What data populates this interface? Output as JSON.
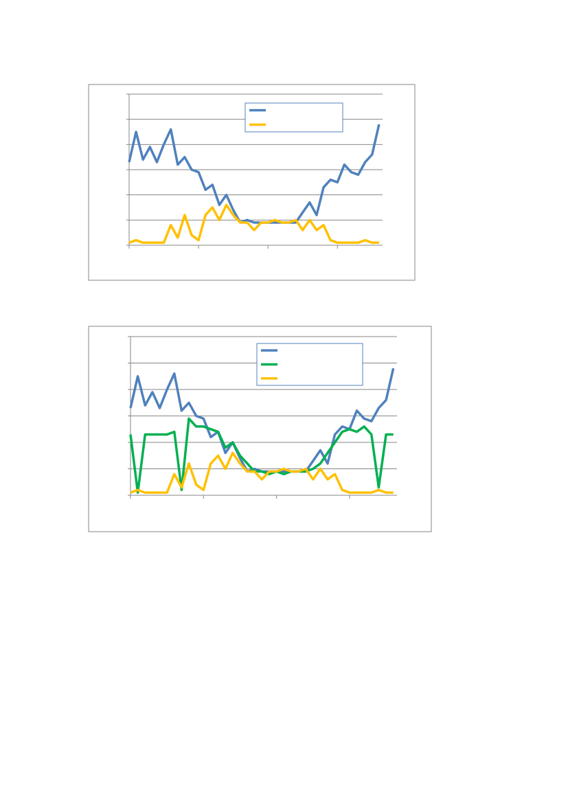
{
  "chart_data": [
    {
      "type": "line",
      "x": [
        0,
        10,
        20,
        30,
        40,
        50,
        60,
        70,
        80,
        90,
        100,
        110,
        120,
        130,
        140,
        150,
        160,
        170,
        180,
        190,
        200,
        210,
        220,
        230,
        240,
        250,
        260,
        270,
        280,
        290,
        300,
        310,
        320,
        330,
        340,
        350,
        360
      ],
      "xlim": [
        0,
        365
      ],
      "xticks": [
        0,
        100,
        200,
        300
      ],
      "ylim": [
        0,
        6
      ],
      "yticks": [
        0,
        1,
        2,
        3,
        4,
        5,
        6
      ],
      "grid": true,
      "series": [
        {
          "color": "#4f81bd",
          "values": [
            3.3,
            4.5,
            3.4,
            3.9,
            3.3,
            4.0,
            4.6,
            3.2,
            3.5,
            3.0,
            2.9,
            2.2,
            2.4,
            1.6,
            2.0,
            1.4,
            0.9,
            1.0,
            0.9,
            0.9,
            0.9,
            0.9,
            0.9,
            0.9,
            0.9,
            1.3,
            1.7,
            1.2,
            2.3,
            2.6,
            2.5,
            3.2,
            2.9,
            2.8,
            3.3,
            3.6,
            4.8
          ]
        },
        {
          "color": "#ffc000",
          "values": [
            0.1,
            0.2,
            0.1,
            0.1,
            0.1,
            0.1,
            0.8,
            0.3,
            1.2,
            0.4,
            0.2,
            1.2,
            1.5,
            1.0,
            1.6,
            1.2,
            0.9,
            0.9,
            0.6,
            0.9,
            0.9,
            1.0,
            0.9,
            0.9,
            1.0,
            0.6,
            1.0,
            0.6,
            0.8,
            0.2,
            0.1,
            0.1,
            0.1,
            0.1,
            0.2,
            0.1,
            0.1
          ]
        }
      ]
    },
    {
      "type": "line",
      "x": [
        0,
        10,
        20,
        30,
        40,
        50,
        60,
        70,
        80,
        90,
        100,
        110,
        120,
        130,
        140,
        150,
        160,
        170,
        180,
        190,
        200,
        210,
        220,
        230,
        240,
        250,
        260,
        270,
        280,
        290,
        300,
        310,
        320,
        330,
        340,
        350,
        360
      ],
      "xlim": [
        0,
        365
      ],
      "xticks": [
        0,
        100,
        200,
        300
      ],
      "ylim": [
        0,
        6
      ],
      "yticks": [
        0,
        1,
        2,
        3,
        4,
        5,
        6
      ],
      "grid": true,
      "series": [
        {
          "color": "#4f81bd",
          "values": [
            3.3,
            4.5,
            3.4,
            3.9,
            3.3,
            4.0,
            4.6,
            3.2,
            3.5,
            3.0,
            2.9,
            2.2,
            2.4,
            1.6,
            2.0,
            1.4,
            0.9,
            1.0,
            0.9,
            0.9,
            0.9,
            0.9,
            0.9,
            0.9,
            0.9,
            1.3,
            1.7,
            1.2,
            2.3,
            2.6,
            2.5,
            3.2,
            2.9,
            2.8,
            3.3,
            3.6,
            4.8
          ]
        },
        {
          "color": "#00b050",
          "values": [
            2.3,
            0.1,
            2.3,
            2.3,
            2.3,
            2.3,
            2.4,
            0.2,
            2.9,
            2.6,
            2.6,
            2.5,
            2.4,
            1.8,
            2.0,
            1.5,
            1.2,
            0.9,
            0.9,
            0.8,
            0.9,
            0.8,
            0.9,
            0.9,
            0.9,
            1.0,
            1.2,
            1.6,
            2.0,
            2.4,
            2.5,
            2.4,
            2.6,
            2.3,
            0.3,
            2.3,
            2.3
          ]
        },
        {
          "color": "#ffc000",
          "values": [
            0.1,
            0.2,
            0.1,
            0.1,
            0.1,
            0.1,
            0.8,
            0.3,
            1.2,
            0.4,
            0.2,
            1.2,
            1.5,
            1.0,
            1.6,
            1.2,
            0.9,
            0.9,
            0.6,
            0.9,
            0.9,
            1.0,
            0.9,
            0.9,
            1.0,
            0.6,
            1.0,
            0.6,
            0.8,
            0.2,
            0.1,
            0.1,
            0.1,
            0.1,
            0.2,
            0.1,
            0.1
          ]
        }
      ]
    }
  ]
}
